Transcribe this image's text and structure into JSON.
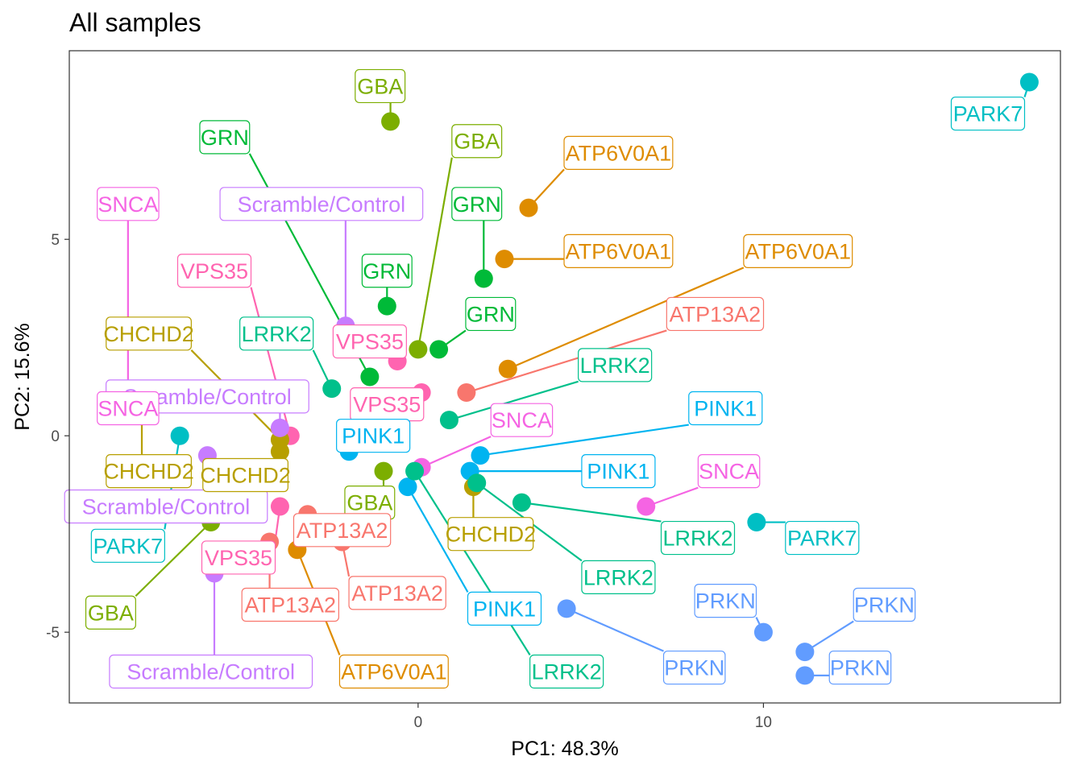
{
  "chart_data": {
    "type": "scatter",
    "title": "All samples",
    "xlabel": "PC1: 48.3%",
    "ylabel": "PC2: 15.6%",
    "xlim": [
      -10.1,
      18.6
    ],
    "ylim": [
      -6.8,
      9.8
    ],
    "x_ticks": [
      0,
      10
    ],
    "y_ticks": [
      -5,
      0,
      5
    ],
    "grid": false,
    "legend": "none",
    "colors": {
      "ATP13A2": "#F8766D",
      "ATP6V0A1": "#DE8C00",
      "CHCHD2": "#B79F00",
      "GBA": "#7CAE00",
      "GRN": "#00BA38",
      "LRRK2": "#00C08B",
      "PARK7": "#00BFC4",
      "PINK1": "#00B4F0",
      "PRKN": "#619CFF",
      "Scramble/Control": "#C77CFF",
      "SNCA": "#F564E3",
      "VPS35": "#FF64B0"
    },
    "points": [
      {
        "group": "PARK7",
        "x": 17.7,
        "y": 9.0,
        "lx": 16.5,
        "ly": 8.2
      },
      {
        "group": "GBA",
        "x": -0.8,
        "y": 8.0,
        "lx": -1.1,
        "ly": 8.9
      },
      {
        "group": "GRN",
        "x": -0.9,
        "y": 3.3,
        "lx": -0.9,
        "ly": 4.2
      },
      {
        "group": "GBA",
        "x": 0.0,
        "y": 2.2,
        "lx": 1.7,
        "ly": 7.5
      },
      {
        "group": "ATP6V0A1",
        "x": 3.2,
        "y": 5.8,
        "lx": 5.8,
        "ly": 7.2
      },
      {
        "group": "ATP6V0A1",
        "x": 2.5,
        "y": 4.5,
        "lx": 5.8,
        "ly": 4.7
      },
      {
        "group": "ATP6V0A1",
        "x": 2.6,
        "y": 1.7,
        "lx": 11.0,
        "ly": 4.7
      },
      {
        "group": "GRN",
        "x": -1.4,
        "y": 1.5,
        "lx": -5.6,
        "ly": 7.6
      },
      {
        "group": "GRN",
        "x": 1.9,
        "y": 4.0,
        "lx": 1.7,
        "ly": 5.9
      },
      {
        "group": "GRN",
        "x": 0.6,
        "y": 2.2,
        "lx": 2.1,
        "ly": 3.1
      },
      {
        "group": "Scramble/Control",
        "x": -2.1,
        "y": 2.8,
        "lx": -2.8,
        "ly": 5.9
      },
      {
        "group": "SNCA",
        "x": -8.4,
        "y": 1.1,
        "lx": -8.4,
        "ly": 5.9
      },
      {
        "group": "VPS35",
        "x": -3.7,
        "y": 0.0,
        "lx": -5.9,
        "ly": 4.2
      },
      {
        "group": "ATP13A2",
        "x": 1.4,
        "y": 1.1,
        "lx": 8.6,
        "ly": 3.1
      },
      {
        "group": "LRRK2",
        "x": 0.9,
        "y": 0.4,
        "lx": 5.7,
        "ly": 1.8
      },
      {
        "group": "LRRK2",
        "x": -2.5,
        "y": 1.2,
        "lx": -4.1,
        "ly": 2.6
      },
      {
        "group": "VPS35",
        "x": -0.6,
        "y": 1.9,
        "lx": -1.4,
        "ly": 2.4
      },
      {
        "group": "VPS35",
        "x": 0.1,
        "y": 1.1,
        "lx": -0.9,
        "ly": 0.8
      },
      {
        "group": "CHCHD2",
        "x": -4.0,
        "y": -0.1,
        "lx": -7.8,
        "ly": 2.6
      },
      {
        "group": "Scramble/Control",
        "x": -4.0,
        "y": 0.2,
        "lx": -6.1,
        "ly": 1.0
      },
      {
        "group": "SNCA",
        "x": -8.0,
        "y": 1.0,
        "lx": -8.4,
        "ly": 0.7
      },
      {
        "group": "CHCHD2",
        "x": -8.0,
        "y": 0.5,
        "lx": -7.8,
        "ly": -0.9
      },
      {
        "group": "PARK7",
        "x": -6.9,
        "y": 0.0,
        "lx": -8.4,
        "ly": -2.8
      },
      {
        "group": "Scramble/Control",
        "x": -6.1,
        "y": -0.5,
        "lx": -7.3,
        "ly": -1.8
      },
      {
        "group": "CHCHD2",
        "x": -4.0,
        "y": -0.4,
        "lx": -5.0,
        "ly": -1.0
      },
      {
        "group": "PINK1",
        "x": -2.0,
        "y": -0.4,
        "lx": -1.3,
        "ly": 0.0
      },
      {
        "group": "GBA",
        "x": -1.0,
        "y": -0.9,
        "lx": -1.4,
        "ly": -1.7
      },
      {
        "group": "SNCA",
        "x": 0.1,
        "y": -0.8,
        "lx": 3.0,
        "ly": 0.4
      },
      {
        "group": "PINK1",
        "x": 1.8,
        "y": -0.5,
        "lx": 8.9,
        "ly": 0.7
      },
      {
        "group": "PINK1",
        "x": 1.5,
        "y": -0.9,
        "lx": 5.8,
        "ly": -0.9
      },
      {
        "group": "PINK1",
        "x": -0.3,
        "y": -1.3,
        "lx": 2.5,
        "ly": -4.4
      },
      {
        "group": "LRRK2",
        "x": -0.1,
        "y": -0.9,
        "lx": 4.3,
        "ly": -6.0
      },
      {
        "group": "CHCHD2",
        "x": 1.6,
        "y": -1.3,
        "lx": 2.1,
        "ly": -2.5
      },
      {
        "group": "LRRK2",
        "x": 3.0,
        "y": -1.7,
        "lx": 8.1,
        "ly": -2.6
      },
      {
        "group": "SNCA",
        "x": 6.6,
        "y": -1.8,
        "lx": 9.0,
        "ly": -0.9
      },
      {
        "group": "PARK7",
        "x": 9.8,
        "y": -2.2,
        "lx": 11.7,
        "ly": -2.6
      },
      {
        "group": "LRRK2",
        "x": 1.7,
        "y": -1.2,
        "lx": 5.8,
        "ly": -3.6
      },
      {
        "group": "GBA",
        "x": -6.0,
        "y": -2.2,
        "lx": -8.9,
        "ly": -4.5
      },
      {
        "group": "ATP13A2",
        "x": -3.2,
        "y": -2.0,
        "lx": -2.2,
        "ly": -2.4
      },
      {
        "group": "ATP13A2",
        "x": -2.2,
        "y": -2.7,
        "lx": -0.6,
        "ly": -4.0
      },
      {
        "group": "ATP13A2",
        "x": -4.3,
        "y": -2.7,
        "lx": -3.7,
        "ly": -4.3
      },
      {
        "group": "ATP6V0A1",
        "x": -3.5,
        "y": -2.9,
        "lx": -0.7,
        "ly": -6.0
      },
      {
        "group": "VPS35",
        "x": -4.0,
        "y": -1.8,
        "lx": -5.2,
        "ly": -3.1
      },
      {
        "group": "Scramble/Control",
        "x": -5.9,
        "y": -3.5,
        "lx": -6.0,
        "ly": -6.0
      },
      {
        "group": "PRKN",
        "x": 4.3,
        "y": -4.4,
        "lx": 8.0,
        "ly": -5.9
      },
      {
        "group": "PRKN",
        "x": 10.0,
        "y": -5.0,
        "lx": 8.9,
        "ly": -4.2
      },
      {
        "group": "PRKN",
        "x": 11.2,
        "y": -5.5,
        "lx": 13.5,
        "ly": -4.3
      },
      {
        "group": "PRKN",
        "x": 11.2,
        "y": -6.1,
        "lx": 12.8,
        "ly": -5.9
      }
    ]
  }
}
